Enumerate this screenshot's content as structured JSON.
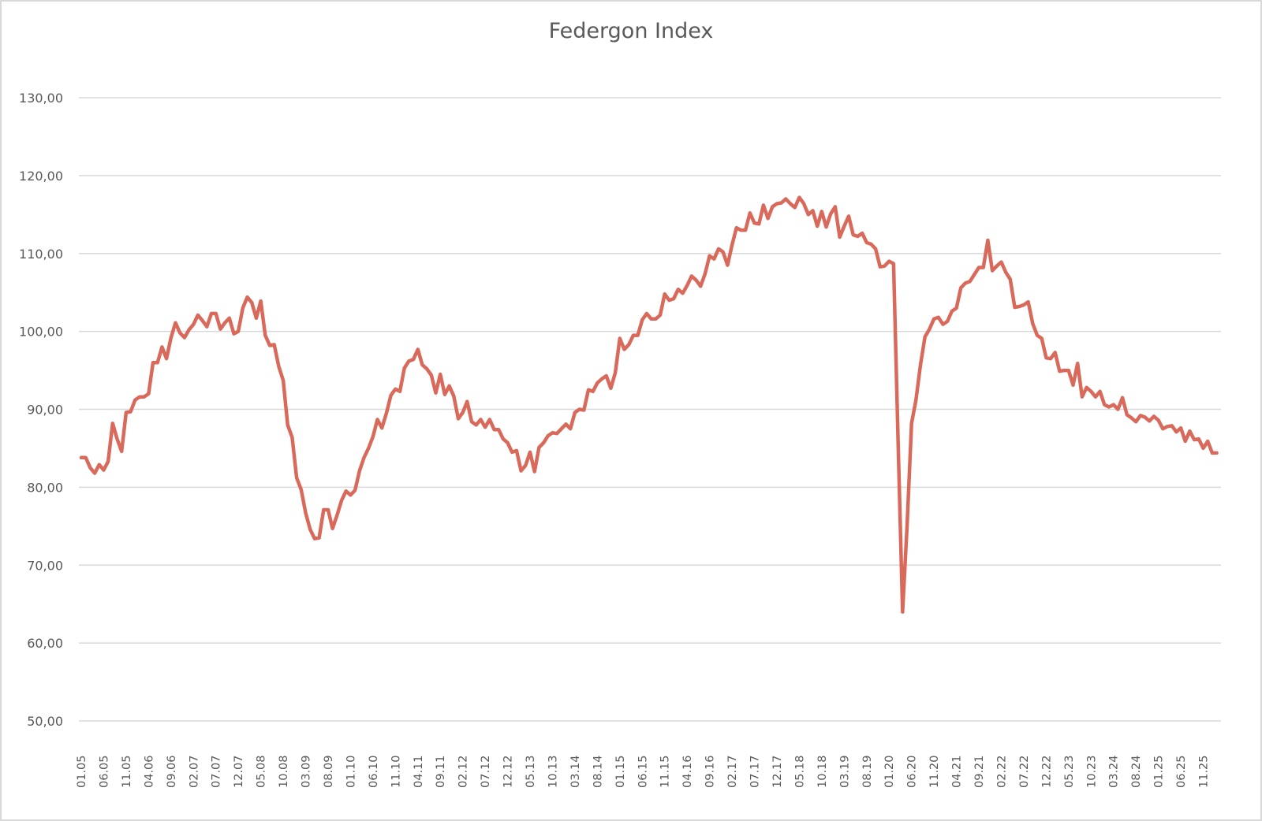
{
  "chart_data": {
    "type": "line",
    "title": "Federgon Index",
    "xlabel": "",
    "ylabel": "",
    "ylim": [
      50,
      130
    ],
    "yticks": [
      50,
      60,
      70,
      80,
      90,
      100,
      110,
      120,
      130
    ],
    "ytick_labels": [
      "50,00",
      "60,00",
      "70,00",
      "80,00",
      "90,00",
      "100,00",
      "110,00",
      "120,00",
      "130,00"
    ],
    "grid": true,
    "legend": "none",
    "x_start": "01.05",
    "x_step_months": 1,
    "xtick_every_months": 5,
    "xtick_labels": [
      "01.05",
      "06.05",
      "11.05",
      "04.06",
      "09.06",
      "02.07",
      "07.07",
      "12.07",
      "05.08",
      "10.08",
      "03.09",
      "08.09",
      "01.10",
      "06.10",
      "11.10",
      "04.11",
      "09.11",
      "02.12",
      "07.12",
      "12.12",
      "05.13",
      "10.13",
      "03.14",
      "08.14",
      "01.15",
      "06.15",
      "11.15",
      "04.16",
      "09.16",
      "02.17",
      "07.17",
      "12.17",
      "05.18",
      "10.18",
      "03.19",
      "08.19",
      "01.20",
      "06.20",
      "11.20",
      "04.21",
      "09.21",
      "02.22",
      "07.22",
      "12.22",
      "05.23",
      "10.23",
      "03.24",
      "08.24",
      "01.25",
      "06.25",
      "11.25"
    ],
    "line_color": "#D9695A",
    "series": [
      {
        "name": "Federgon Index",
        "values": [
          83.8,
          83.8,
          82.5,
          81.8,
          82.9,
          82.2,
          83.3,
          88.2,
          86.2,
          84.6,
          89.6,
          89.7,
          91.2,
          91.6,
          91.6,
          92.0,
          96.0,
          96.0,
          98.0,
          96.5,
          99.2,
          101.1,
          99.8,
          99.2,
          100.2,
          100.9,
          102.1,
          101.4,
          100.6,
          102.3,
          102.3,
          100.3,
          101.1,
          101.7,
          99.7,
          100.0,
          103.0,
          104.4,
          103.7,
          101.7,
          103.9,
          99.5,
          98.2,
          98.3,
          95.5,
          93.7,
          88.0,
          86.4,
          81.2,
          79.7,
          76.7,
          74.6,
          73.4,
          73.5,
          77.1,
          77.1,
          74.7,
          76.4,
          78.3,
          79.5,
          79.0,
          79.6,
          82.1,
          83.8,
          85.0,
          86.5,
          88.7,
          87.6,
          89.5,
          91.8,
          92.6,
          92.3,
          95.3,
          96.2,
          96.4,
          97.7,
          95.7,
          95.2,
          94.4,
          92.1,
          94.5,
          91.9,
          93.0,
          91.7,
          88.8,
          89.6,
          91.0,
          88.4,
          88.0,
          88.7,
          87.7,
          88.7,
          87.4,
          87.4,
          86.2,
          85.7,
          84.5,
          84.7,
          82.1,
          82.8,
          84.5,
          82.0,
          85.1,
          85.7,
          86.6,
          87.0,
          86.9,
          87.5,
          88.1,
          87.5,
          89.6,
          90.0,
          89.9,
          92.5,
          92.3,
          93.4,
          93.9,
          94.3,
          92.7,
          94.7,
          99.1,
          97.7,
          98.3,
          99.5,
          99.5,
          101.5,
          102.3,
          101.6,
          101.6,
          102.1,
          104.8,
          104.0,
          104.2,
          105.4,
          104.9,
          105.9,
          107.1,
          106.6,
          105.8,
          107.4,
          109.7,
          109.3,
          110.6,
          110.2,
          108.5,
          111.1,
          113.3,
          113.0,
          113.0,
          115.2,
          113.9,
          113.8,
          116.2,
          114.5,
          116.0,
          116.4,
          116.5,
          117.0,
          116.4,
          115.9,
          117.2,
          116.4,
          115.0,
          115.5,
          113.5,
          115.4,
          113.4,
          115.1,
          116.0,
          112.1,
          113.5,
          114.8,
          112.4,
          112.2,
          112.6,
          111.4,
          111.2,
          110.6,
          108.3,
          108.4,
          109.0,
          108.7,
          86.0,
          64.0,
          75.0,
          88.2,
          91.2,
          95.7,
          99.3,
          100.3,
          101.6,
          101.8,
          100.9,
          101.3,
          102.6,
          103.0,
          105.6,
          106.2,
          106.4,
          107.3,
          108.2,
          108.2,
          111.7,
          107.8,
          108.4,
          108.9,
          107.6,
          106.7,
          103.1,
          103.2,
          103.4,
          103.8,
          101.0,
          99.5,
          99.1,
          96.6,
          96.5,
          97.3,
          94.9,
          95.0,
          95.0,
          93.1,
          95.9,
          91.6,
          92.8,
          92.3,
          91.6,
          92.3,
          90.6,
          90.3,
          90.6,
          90.0,
          91.5,
          89.3,
          88.9,
          88.4,
          89.2,
          89.0,
          88.5,
          89.1,
          88.6,
          87.5,
          87.8,
          87.9,
          87.1,
          87.6,
          85.9,
          87.2,
          86.1,
          86.2,
          85.0,
          85.9,
          84.4,
          84.4
        ]
      }
    ]
  }
}
